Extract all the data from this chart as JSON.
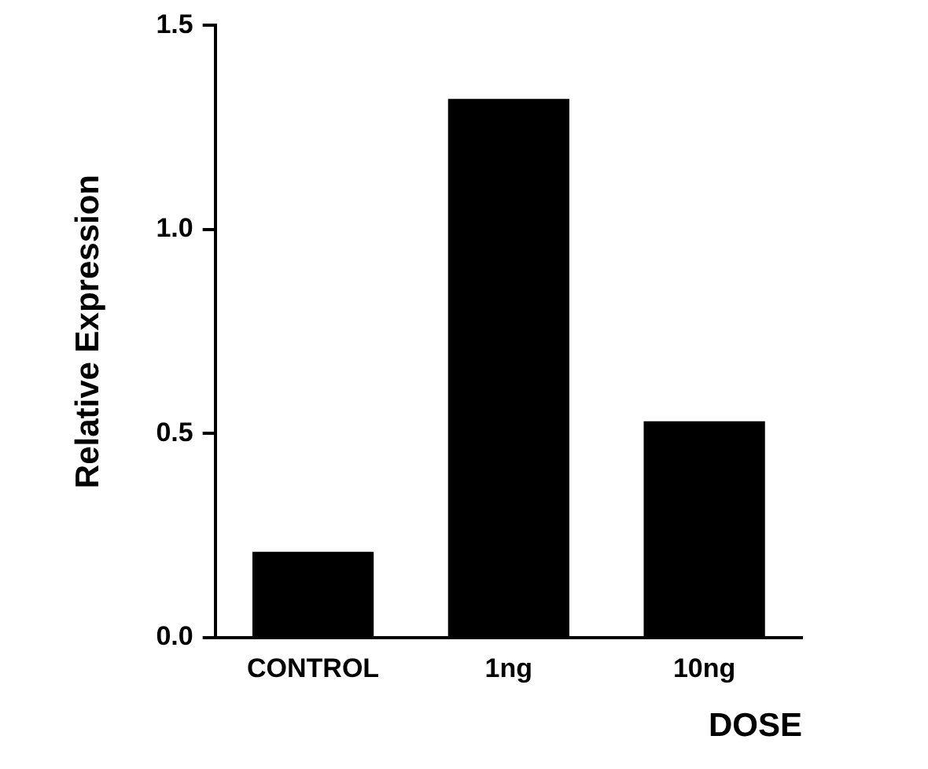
{
  "chart_data": {
    "type": "bar",
    "xlabel": "DOSE",
    "ylabel": "Relative Expression",
    "categories": [
      "CONTROL",
      "1ng",
      "10ng"
    ],
    "values": [
      0.21,
      1.32,
      0.53
    ],
    "color": "#000000",
    "ylim": [
      0,
      1.5
    ],
    "yticks": [
      {
        "value": 0,
        "label": "0.0"
      },
      {
        "value": 0.5,
        "label": "0.5"
      },
      {
        "value": 1,
        "label": "1.0"
      },
      {
        "value": 1.5,
        "label": "1.5"
      }
    ],
    "grid": false,
    "legend": false
  }
}
